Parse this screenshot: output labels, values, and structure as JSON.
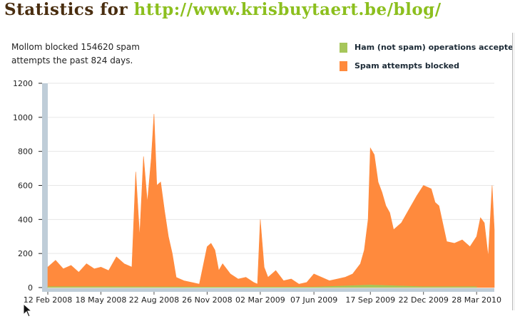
{
  "page": {
    "title_prefix": "Statistics for",
    "title_url": "http://www.krisbuytaert.be/blog/",
    "summary": "Mollom blocked 154620 spam attempts the past 824 days."
  },
  "colors": {
    "title_text": "#4a2e10",
    "title_url": "#8cbf1e",
    "ham": "#a6c65a",
    "spam": "#ff8a3d",
    "axis_bar": "#bfcdd8"
  },
  "chart_data": {
    "type": "area",
    "title": "",
    "xlabel": "",
    "ylabel": "",
    "ylim": [
      0,
      1200
    ],
    "yticks": [
      0,
      200,
      400,
      600,
      800,
      1000,
      1200
    ],
    "xticks": [
      "12 Feb 2008",
      "18 May 2008",
      "22 Aug 2008",
      "26 Nov 2008",
      "02 Mar 2009",
      "07 Jun 2009",
      "17 Sep 2009",
      "22 Dec 2009",
      "28 Mar 2010"
    ],
    "grid": true,
    "legend_position": "top-right",
    "series": [
      {
        "name": "Ham (not spam) operations accepted",
        "color": "#a6c65a",
        "x": [
          "12 Feb 2008",
          "18 May 2008",
          "22 Aug 2008",
          "26 Nov 2008",
          "02 Mar 2009",
          "07 Jun 2009",
          "17 Sep 2009",
          "22 Dec 2009",
          "28 Mar 2010"
        ],
        "values": [
          5,
          5,
          4,
          3,
          3,
          3,
          15,
          5,
          5
        ]
      },
      {
        "name": "Spam attempts blocked",
        "color": "#ff8a3d",
        "x": [
          "12 Feb 2008",
          "26 Feb 2008",
          "11 Mar 2008",
          "25 Mar 2008",
          "08 Apr 2008",
          "22 Apr 2008",
          "06 May 2008",
          "18 May 2008",
          "01 Jun 2008",
          "15 Jun 2008",
          "29 Jun 2008",
          "13 Jul 2008",
          "20 Jul 2008",
          "27 Jul 2008",
          "03 Aug 2008",
          "10 Aug 2008",
          "17 Aug 2008",
          "22 Aug 2008",
          "27 Aug 2008",
          "03 Sep 2008",
          "10 Sep 2008",
          "17 Sep 2008",
          "24 Sep 2008",
          "01 Oct 2008",
          "15 Oct 2008",
          "29 Oct 2008",
          "12 Nov 2008",
          "26 Nov 2008",
          "03 Dec 2008",
          "10 Dec 2008",
          "17 Dec 2008",
          "24 Dec 2008",
          "07 Jan 2009",
          "21 Jan 2009",
          "04 Feb 2009",
          "18 Feb 2009",
          "25 Feb 2009",
          "02 Mar 2009",
          "09 Mar 2009",
          "16 Mar 2009",
          "30 Mar 2009",
          "13 Apr 2009",
          "27 Apr 2009",
          "11 May 2009",
          "25 May 2009",
          "07 Jun 2009",
          "21 Jun 2009",
          "05 Jul 2009",
          "19 Jul 2009",
          "02 Aug 2009",
          "16 Aug 2009",
          "30 Aug 2009",
          "06 Sep 2009",
          "13 Sep 2009",
          "17 Sep 2009",
          "24 Sep 2009",
          "01 Oct 2009",
          "08 Oct 2009",
          "15 Oct 2009",
          "22 Oct 2009",
          "29 Oct 2009",
          "12 Nov 2009",
          "26 Nov 2009",
          "10 Dec 2009",
          "22 Dec 2009",
          "05 Jan 2010",
          "12 Jan 2010",
          "19 Jan 2010",
          "02 Feb 2010",
          "16 Feb 2010",
          "02 Mar 2010",
          "16 Mar 2010",
          "28 Mar 2010",
          "04 Apr 2010",
          "11 Apr 2010",
          "18 Apr 2010",
          "25 Apr 2010",
          "29 Apr 2010"
        ],
        "values": [
          120,
          160,
          110,
          130,
          90,
          140,
          110,
          120,
          100,
          180,
          140,
          120,
          680,
          300,
          770,
          500,
          760,
          1020,
          600,
          620,
          450,
          300,
          200,
          60,
          40,
          30,
          20,
          240,
          260,
          220,
          100,
          140,
          80,
          50,
          60,
          30,
          20,
          400,
          120,
          60,
          100,
          40,
          50,
          20,
          30,
          80,
          60,
          40,
          50,
          60,
          80,
          140,
          220,
          400,
          820,
          780,
          620,
          560,
          480,
          440,
          340,
          380,
          460,
          540,
          600,
          580,
          500,
          480,
          270,
          260,
          280,
          240,
          300,
          410,
          380,
          180,
          600,
          340
        ]
      }
    ]
  }
}
